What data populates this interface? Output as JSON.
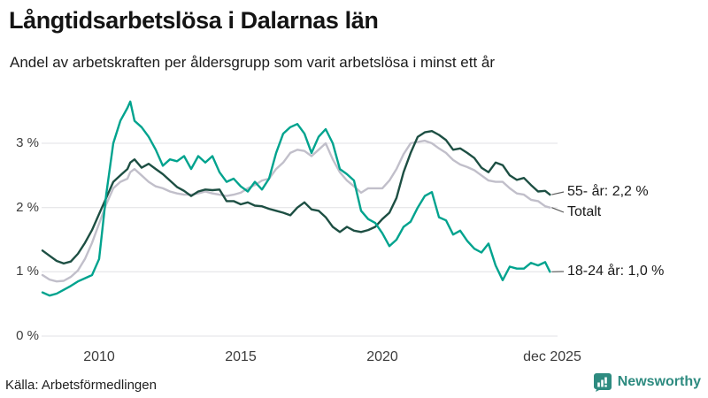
{
  "header": {
    "title": "Långtidsarbetslösa i Dalarnas län",
    "subtitle": "Andel av arbetskraften per åldersgrupp som varit arbetslösa i minst ett år"
  },
  "chart_data": {
    "type": "line",
    "title": "Långtidsarbetslösa i Dalarnas län",
    "subtitle": "Andel av arbetskraften per åldersgrupp som varit arbetslösa i minst ett år",
    "unit": "% av arbetskraften",
    "grid": "horizontal",
    "ylim": [
      0,
      3.8
    ],
    "xlim": [
      2008,
      2026
    ],
    "yticks": [
      "3 %",
      "2 %",
      "1 %",
      "0 %"
    ],
    "ytick_values": [
      3,
      2,
      1,
      0
    ],
    "xticks": [
      "2010",
      "2015",
      "2020",
      "dec 2025"
    ],
    "xtick_values": [
      2010,
      2015,
      2020,
      2025.92
    ],
    "x": [
      2008.0,
      2008.25,
      2008.5,
      2008.75,
      2009.0,
      2009.25,
      2009.5,
      2009.75,
      2010.0,
      2010.25,
      2010.5,
      2010.75,
      2011.0,
      2011.1,
      2011.25,
      2011.5,
      2011.75,
      2012.0,
      2012.25,
      2012.5,
      2012.75,
      2013.0,
      2013.25,
      2013.5,
      2013.75,
      2014.0,
      2014.25,
      2014.5,
      2014.75,
      2015.0,
      2015.25,
      2015.5,
      2015.75,
      2016.0,
      2016.25,
      2016.5,
      2016.75,
      2017.0,
      2017.25,
      2017.5,
      2017.75,
      2018.0,
      2018.25,
      2018.5,
      2018.75,
      2019.0,
      2019.25,
      2019.5,
      2019.75,
      2020.0,
      2020.25,
      2020.5,
      2020.75,
      2021.0,
      2021.25,
      2021.5,
      2021.75,
      2022.0,
      2022.25,
      2022.5,
      2022.75,
      2023.0,
      2023.25,
      2023.5,
      2023.75,
      2024.0,
      2024.25,
      2024.5,
      2024.75,
      2025.0,
      2025.25,
      2025.5,
      2025.75,
      2025.92
    ],
    "series": [
      {
        "name": "Totalt",
        "end_label": "Totalt",
        "end_value": 2.0,
        "color": "#c1bfca",
        "values": [
          0.95,
          0.88,
          0.85,
          0.86,
          0.92,
          1.02,
          1.2,
          1.45,
          1.75,
          2.05,
          2.3,
          2.4,
          2.45,
          2.55,
          2.6,
          2.5,
          2.4,
          2.33,
          2.3,
          2.25,
          2.22,
          2.2,
          2.2,
          2.22,
          2.25,
          2.22,
          2.2,
          2.18,
          2.2,
          2.23,
          2.3,
          2.35,
          2.42,
          2.45,
          2.6,
          2.7,
          2.85,
          2.9,
          2.88,
          2.8,
          2.9,
          3.0,
          2.75,
          2.55,
          2.42,
          2.33,
          2.23,
          2.3,
          2.3,
          2.3,
          2.42,
          2.6,
          2.83,
          3.0,
          3.02,
          3.04,
          3.0,
          2.92,
          2.85,
          2.74,
          2.67,
          2.63,
          2.58,
          2.5,
          2.42,
          2.4,
          2.4,
          2.3,
          2.22,
          2.2,
          2.12,
          2.1,
          2.02,
          2.0
        ]
      },
      {
        "name": "55- år",
        "end_label": "55- år: 2,2 %",
        "end_value": 2.2,
        "color": "#1d4f43",
        "values": [
          1.33,
          1.25,
          1.17,
          1.13,
          1.16,
          1.28,
          1.45,
          1.65,
          1.9,
          2.15,
          2.4,
          2.5,
          2.6,
          2.7,
          2.75,
          2.62,
          2.68,
          2.6,
          2.52,
          2.42,
          2.32,
          2.26,
          2.18,
          2.25,
          2.28,
          2.27,
          2.28,
          2.1,
          2.1,
          2.05,
          2.08,
          2.03,
          2.02,
          1.98,
          1.95,
          1.92,
          1.88,
          2.0,
          2.08,
          1.97,
          1.95,
          1.85,
          1.7,
          1.62,
          1.7,
          1.64,
          1.62,
          1.65,
          1.7,
          1.82,
          1.92,
          2.15,
          2.55,
          2.85,
          3.1,
          3.17,
          3.19,
          3.13,
          3.05,
          2.9,
          2.92,
          2.85,
          2.77,
          2.62,
          2.55,
          2.7,
          2.66,
          2.5,
          2.43,
          2.46,
          2.35,
          2.25,
          2.26,
          2.2
        ]
      },
      {
        "name": "18-24 år",
        "end_label": "18-24 år: 1,0 %",
        "end_value": 1.0,
        "color": "#00a38e",
        "values": [
          0.68,
          0.63,
          0.66,
          0.72,
          0.78,
          0.85,
          0.9,
          0.95,
          1.2,
          2.2,
          3.0,
          3.35,
          3.55,
          3.65,
          3.35,
          3.25,
          3.1,
          2.9,
          2.65,
          2.75,
          2.72,
          2.8,
          2.6,
          2.8,
          2.7,
          2.8,
          2.55,
          2.4,
          2.45,
          2.33,
          2.25,
          2.4,
          2.28,
          2.45,
          2.85,
          3.15,
          3.25,
          3.3,
          3.15,
          2.85,
          3.1,
          3.22,
          3.0,
          2.6,
          2.52,
          2.42,
          1.95,
          1.82,
          1.76,
          1.6,
          1.4,
          1.5,
          1.7,
          1.78,
          2.0,
          2.18,
          2.24,
          1.85,
          1.8,
          1.58,
          1.64,
          1.48,
          1.36,
          1.3,
          1.44,
          1.1,
          0.87,
          1.08,
          1.05,
          1.05,
          1.14,
          1.1,
          1.15,
          1.0
        ]
      }
    ],
    "legend_position": "end-of-line-labels",
    "grid_color": "#e0e0e4",
    "connector_color": "#5c5c5c"
  },
  "footer": {
    "source": "Källa: Arbetsförmedlingen",
    "brand": "Newsworthy",
    "brand_color": "#2e8b80"
  }
}
